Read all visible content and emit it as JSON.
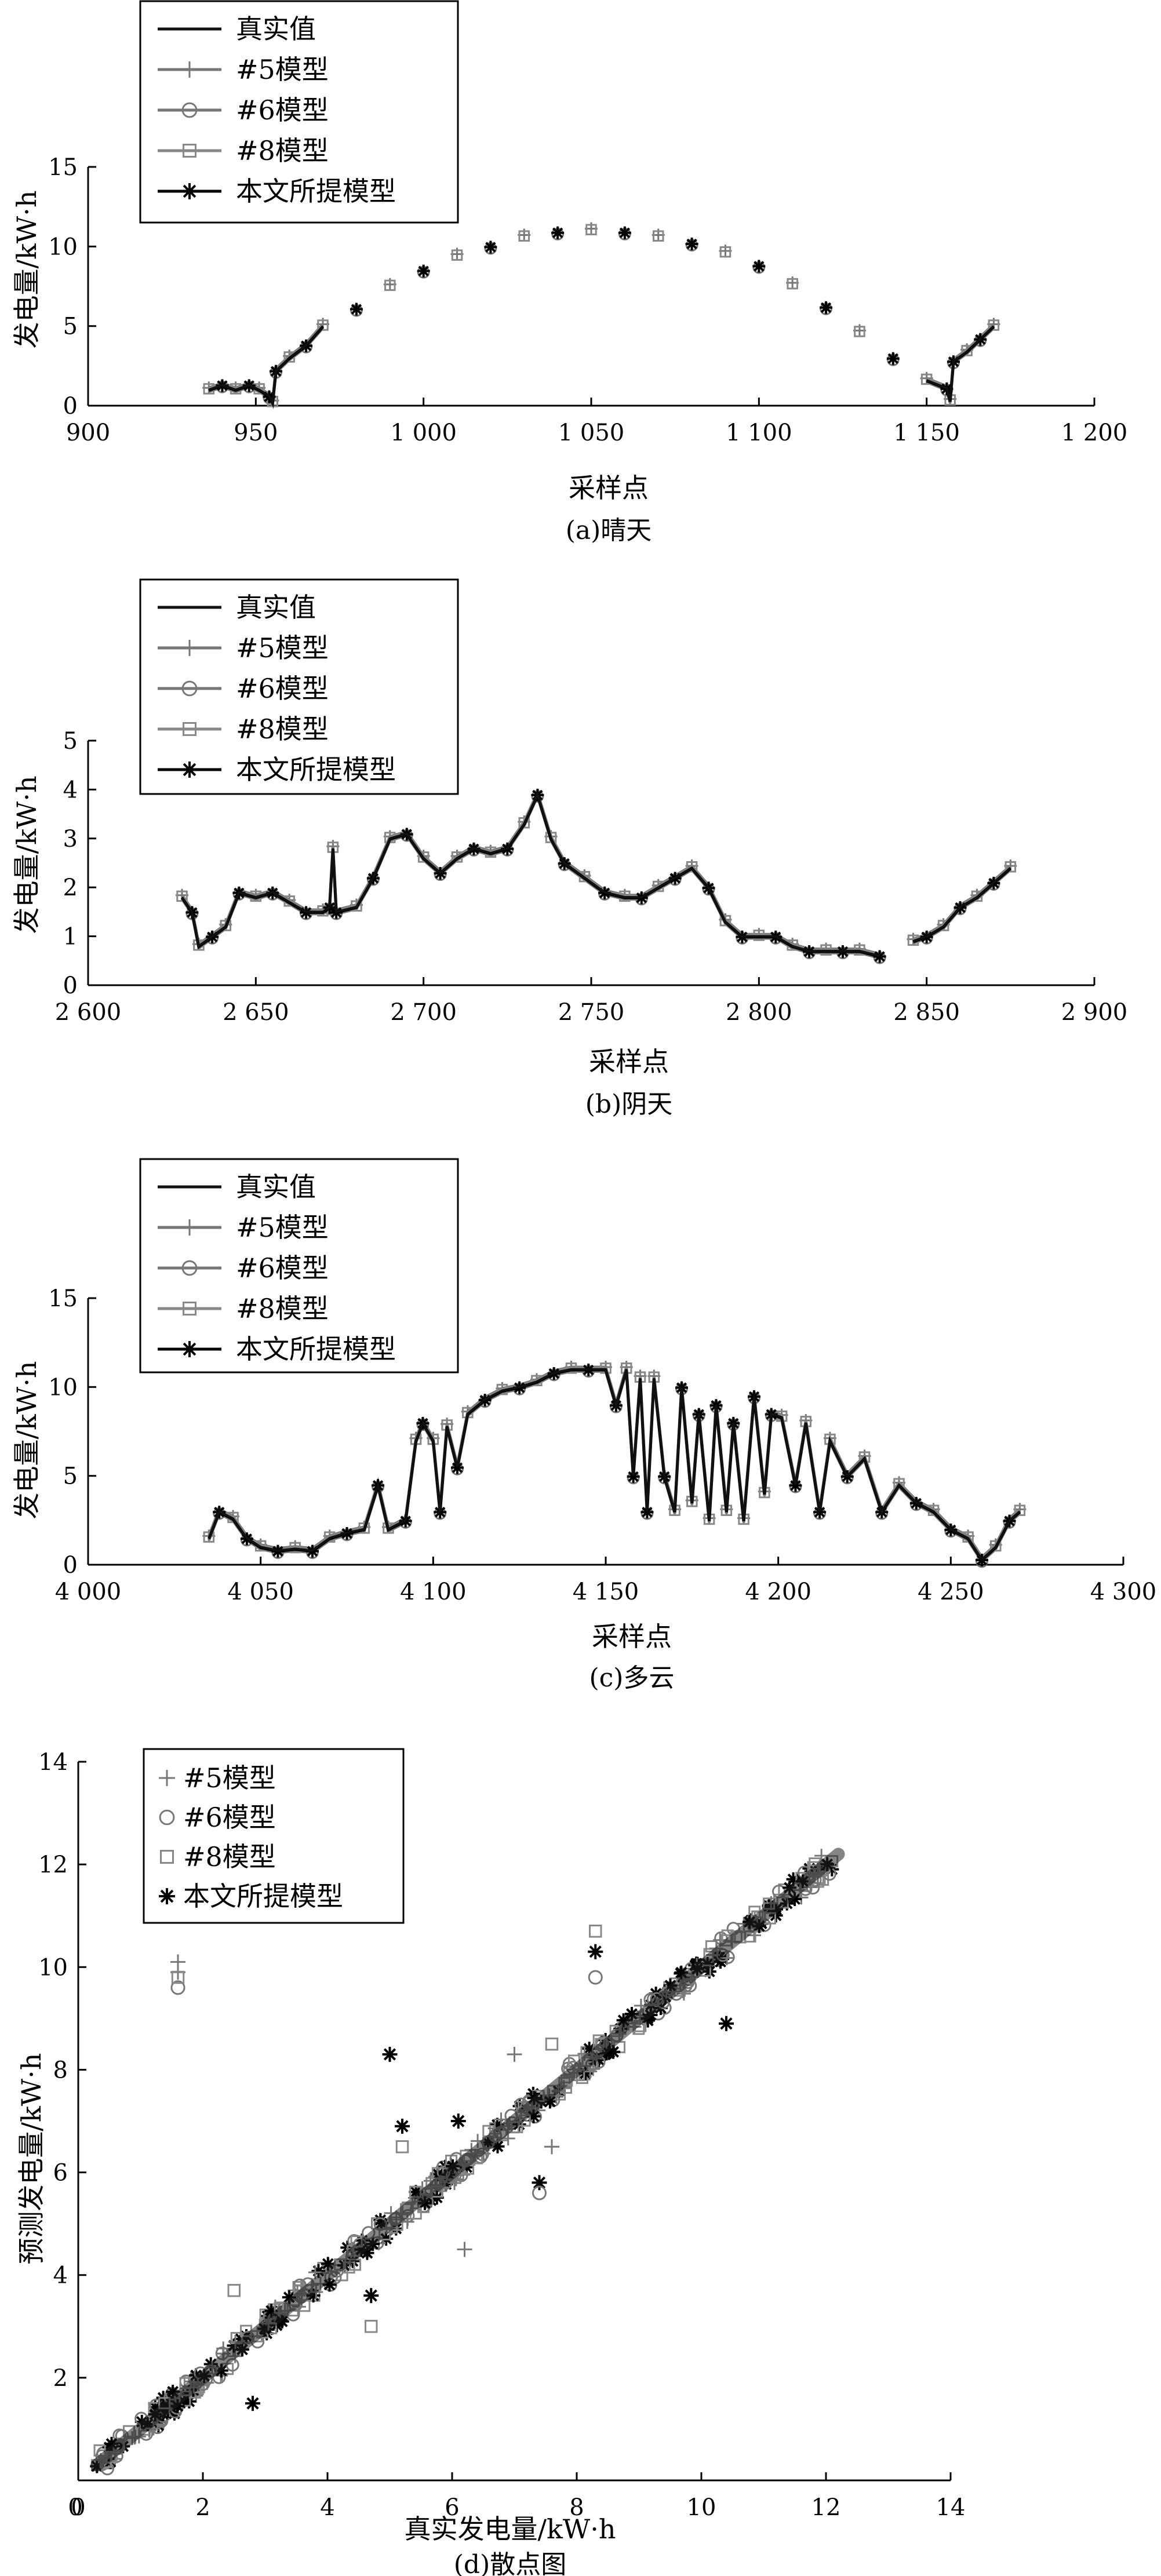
{
  "colors": {
    "actual": "#111111",
    "m5": "#777777",
    "m6": "#777777",
    "m8": "#888888",
    "proposed": "#000000"
  },
  "chart_data": [
    {
      "id": "a",
      "type": "line",
      "caption": "(a)晴天",
      "xlabel": "采样点",
      "ylabel": "发电量/kW·h",
      "xlim": [
        900,
        1200
      ],
      "ylim": [
        0,
        15
      ],
      "xticks": [
        900,
        950,
        1000,
        1050,
        1100,
        1150,
        1200
      ],
      "xtick_labels": [
        "900",
        "950",
        "1 000",
        "1 050",
        "1 100",
        "1 150",
        "1 200"
      ],
      "yticks": [
        0,
        5,
        10,
        15
      ],
      "ytick_labels": [
        "0",
        "5",
        "10",
        "15"
      ],
      "legend_position": "top-left",
      "legend": [
        "真实值",
        "#5模型",
        "#6模型",
        "#8模型",
        "本文所提模型"
      ],
      "series_key": "actual",
      "points": [
        [
          936,
          1.0
        ],
        [
          940,
          1.3
        ],
        [
          944,
          1.0
        ],
        [
          948,
          1.3
        ],
        [
          951,
          1.0
        ],
        [
          954,
          0.6
        ],
        [
          955,
          0.2
        ],
        [
          956,
          2.2
        ],
        [
          960,
          3.0
        ],
        [
          965,
          3.8
        ],
        [
          970,
          5.0
        ],
        [
          980,
          6.1
        ],
        [
          990,
          7.5
        ],
        [
          1000,
          8.5
        ],
        [
          1010,
          9.4
        ],
        [
          1020,
          10.0
        ],
        [
          1030,
          10.6
        ],
        [
          1040,
          10.9
        ],
        [
          1050,
          11.0
        ],
        [
          1060,
          10.9
        ],
        [
          1070,
          10.6
        ],
        [
          1080,
          10.2
        ],
        [
          1090,
          9.6
        ],
        [
          1100,
          8.8
        ],
        [
          1110,
          7.6
        ],
        [
          1120,
          6.2
        ],
        [
          1130,
          4.6
        ],
        [
          1140,
          3.0
        ],
        [
          1150,
          1.6
        ],
        [
          1156,
          1.1
        ],
        [
          1157,
          0.3
        ],
        [
          1158,
          2.8
        ],
        [
          1162,
          3.4
        ],
        [
          1166,
          4.2
        ],
        [
          1170,
          5.0
        ]
      ]
    },
    {
      "id": "b",
      "type": "line",
      "caption": "(b)阴天",
      "xlabel": "采样点",
      "ylabel": "发电量/kW·h",
      "xlim": [
        2600,
        2900
      ],
      "ylim": [
        0,
        5
      ],
      "xticks": [
        2600,
        2650,
        2700,
        2750,
        2800,
        2850,
        2900
      ],
      "xtick_labels": [
        "2 600",
        "2 650",
        "2 700",
        "2 750",
        "2 800",
        "2 850",
        "2 900"
      ],
      "yticks": [
        0,
        1,
        2,
        3,
        4,
        5
      ],
      "ytick_labels": [
        "0",
        "1",
        "2",
        "3",
        "4",
        "5"
      ],
      "legend_position": "top-left",
      "legend": [
        "真实值",
        "#5模型",
        "#6模型",
        "#8模型",
        "本文所提模型"
      ],
      "series_key": "actual",
      "points": [
        [
          2628,
          1.8
        ],
        [
          2631,
          1.5
        ],
        [
          2633,
          0.8
        ],
        [
          2637,
          1.0
        ],
        [
          2641,
          1.2
        ],
        [
          2645,
          1.9
        ],
        [
          2650,
          1.8
        ],
        [
          2655,
          1.9
        ],
        [
          2660,
          1.7
        ],
        [
          2665,
          1.5
        ],
        [
          2670,
          1.5
        ],
        [
          2672,
          1.6
        ],
        [
          2673,
          2.8
        ],
        [
          2674,
          1.5
        ],
        [
          2680,
          1.6
        ],
        [
          2685,
          2.2
        ],
        [
          2690,
          3.0
        ],
        [
          2695,
          3.1
        ],
        [
          2700,
          2.6
        ],
        [
          2705,
          2.3
        ],
        [
          2710,
          2.6
        ],
        [
          2715,
          2.8
        ],
        [
          2720,
          2.7
        ],
        [
          2725,
          2.8
        ],
        [
          2730,
          3.3
        ],
        [
          2734,
          3.9
        ],
        [
          2738,
          3.0
        ],
        [
          2742,
          2.5
        ],
        [
          2748,
          2.2
        ],
        [
          2754,
          1.9
        ],
        [
          2760,
          1.8
        ],
        [
          2765,
          1.8
        ],
        [
          2770,
          2.0
        ],
        [
          2775,
          2.2
        ],
        [
          2780,
          2.4
        ],
        [
          2785,
          2.0
        ],
        [
          2790,
          1.3
        ],
        [
          2795,
          1.0
        ],
        [
          2800,
          1.0
        ],
        [
          2805,
          1.0
        ],
        [
          2810,
          0.8
        ],
        [
          2815,
          0.7
        ],
        [
          2820,
          0.7
        ],
        [
          2825,
          0.7
        ],
        [
          2830,
          0.7
        ],
        [
          2836,
          0.6
        ],
        [
          2846,
          0.9
        ],
        [
          2850,
          1.0
        ],
        [
          2855,
          1.2
        ],
        [
          2860,
          1.6
        ],
        [
          2865,
          1.8
        ],
        [
          2870,
          2.1
        ],
        [
          2875,
          2.4
        ]
      ]
    },
    {
      "id": "c",
      "type": "line",
      "caption": "(c)多云",
      "xlabel": "采样点",
      "ylabel": "发电量/kW·h",
      "xlim": [
        4000,
        4300
      ],
      "ylim": [
        0,
        15
      ],
      "xticks": [
        4000,
        4050,
        4100,
        4150,
        4200,
        4250,
        4300
      ],
      "xtick_labels": [
        "4 000",
        "4 050",
        "4 100",
        "4 150",
        "4 200",
        "4 250",
        "4 300"
      ],
      "yticks": [
        0,
        5,
        10,
        15
      ],
      "ytick_labels": [
        "0",
        "5",
        "10",
        "15"
      ],
      "legend_position": "top-left",
      "legend": [
        "真实值",
        "#5模型",
        "#6模型",
        "#8模型",
        "本文所提模型"
      ],
      "series_key": "actual",
      "points": [
        [
          4035,
          1.5
        ],
        [
          4038,
          3.0
        ],
        [
          4042,
          2.6
        ],
        [
          4046,
          1.5
        ],
        [
          4050,
          1.0
        ],
        [
          4055,
          0.8
        ],
        [
          4060,
          0.9
        ],
        [
          4065,
          0.8
        ],
        [
          4070,
          1.5
        ],
        [
          4075,
          1.8
        ],
        [
          4080,
          2.0
        ],
        [
          4084,
          4.5
        ],
        [
          4087,
          2.0
        ],
        [
          4092,
          2.5
        ],
        [
          4095,
          7.0
        ],
        [
          4097,
          8.0
        ],
        [
          4100,
          7.0
        ],
        [
          4102,
          3.0
        ],
        [
          4104,
          7.8
        ],
        [
          4107,
          5.5
        ],
        [
          4110,
          8.5
        ],
        [
          4115,
          9.3
        ],
        [
          4120,
          9.8
        ],
        [
          4125,
          10.0
        ],
        [
          4130,
          10.3
        ],
        [
          4135,
          10.8
        ],
        [
          4140,
          11.0
        ],
        [
          4145,
          11.0
        ],
        [
          4150,
          11.0
        ],
        [
          4153,
          9.0
        ],
        [
          4156,
          11.0
        ],
        [
          4158,
          5.0
        ],
        [
          4160,
          10.5
        ],
        [
          4162,
          3.0
        ],
        [
          4164,
          10.5
        ],
        [
          4167,
          5.0
        ],
        [
          4170,
          3.0
        ],
        [
          4172,
          10.0
        ],
        [
          4175,
          3.5
        ],
        [
          4177,
          8.5
        ],
        [
          4180,
          2.5
        ],
        [
          4182,
          9.0
        ],
        [
          4185,
          3.0
        ],
        [
          4187,
          8.0
        ],
        [
          4190,
          2.5
        ],
        [
          4193,
          9.5
        ],
        [
          4196,
          4.0
        ],
        [
          4198,
          8.5
        ],
        [
          4201,
          8.3
        ],
        [
          4205,
          4.5
        ],
        [
          4208,
          8.0
        ],
        [
          4212,
          3.0
        ],
        [
          4215,
          7.0
        ],
        [
          4220,
          5.0
        ],
        [
          4225,
          6.0
        ],
        [
          4230,
          3.0
        ],
        [
          4235,
          4.5
        ],
        [
          4240,
          3.5
        ],
        [
          4245,
          3.0
        ],
        [
          4250,
          2.0
        ],
        [
          4255,
          1.5
        ],
        [
          4259,
          0.3
        ],
        [
          4263,
          1.0
        ],
        [
          4267,
          2.5
        ],
        [
          4270,
          3.0
        ]
      ]
    },
    {
      "id": "d",
      "type": "scatter",
      "caption": "(d)散点图",
      "xlabel": "真实发电量/kW·h",
      "ylabel": "预测发电量/kW·h",
      "xlim": [
        0,
        14
      ],
      "ylim": [
        0,
        14
      ],
      "xticks": [
        0,
        2,
        4,
        6,
        8,
        10,
        12,
        14
      ],
      "xtick_labels": [
        "0",
        "2",
        "4",
        "6",
        "8",
        "10",
        "12",
        "14"
      ],
      "yticks": [
        2,
        4,
        6,
        8,
        10,
        12,
        14
      ],
      "ytick_labels": [
        "2",
        "4",
        "6",
        "8",
        "10",
        "12",
        "14"
      ],
      "legend_position": "top-left",
      "legend": [
        "#5模型",
        "#6模型",
        "#8模型",
        "本文所提模型"
      ],
      "outliers": [
        {
          "x": 1.6,
          "y": 9.9,
          "m": "+"
        },
        {
          "x": 1.6,
          "y": 9.6,
          "m": "o"
        },
        {
          "x": 1.6,
          "y": 9.8,
          "m": "s"
        },
        {
          "x": 1.6,
          "y": 10.1,
          "m": "+"
        },
        {
          "x": 2.5,
          "y": 3.7,
          "m": "s"
        },
        {
          "x": 2.8,
          "y": 1.5,
          "m": "*"
        },
        {
          "x": 4.7,
          "y": 3.6,
          "m": "*"
        },
        {
          "x": 4.7,
          "y": 3.0,
          "m": "s"
        },
        {
          "x": 5.0,
          "y": 8.3,
          "m": "*"
        },
        {
          "x": 5.2,
          "y": 6.9,
          "m": "*"
        },
        {
          "x": 5.2,
          "y": 6.5,
          "m": "s"
        },
        {
          "x": 6.2,
          "y": 4.5,
          "m": "+"
        },
        {
          "x": 7.4,
          "y": 5.8,
          "m": "*"
        },
        {
          "x": 7.4,
          "y": 5.6,
          "m": "o"
        },
        {
          "x": 7.6,
          "y": 6.5,
          "m": "+"
        },
        {
          "x": 7.6,
          "y": 8.5,
          "m": "s"
        },
        {
          "x": 8.3,
          "y": 10.7,
          "m": "s"
        },
        {
          "x": 8.3,
          "y": 10.3,
          "m": "*"
        },
        {
          "x": 8.3,
          "y": 9.8,
          "m": "o"
        },
        {
          "x": 10.4,
          "y": 8.9,
          "m": "*"
        },
        {
          "x": 7.0,
          "y": 8.3,
          "m": "+"
        },
        {
          "x": 6.1,
          "y": 7.0,
          "m": "*"
        }
      ]
    }
  ]
}
